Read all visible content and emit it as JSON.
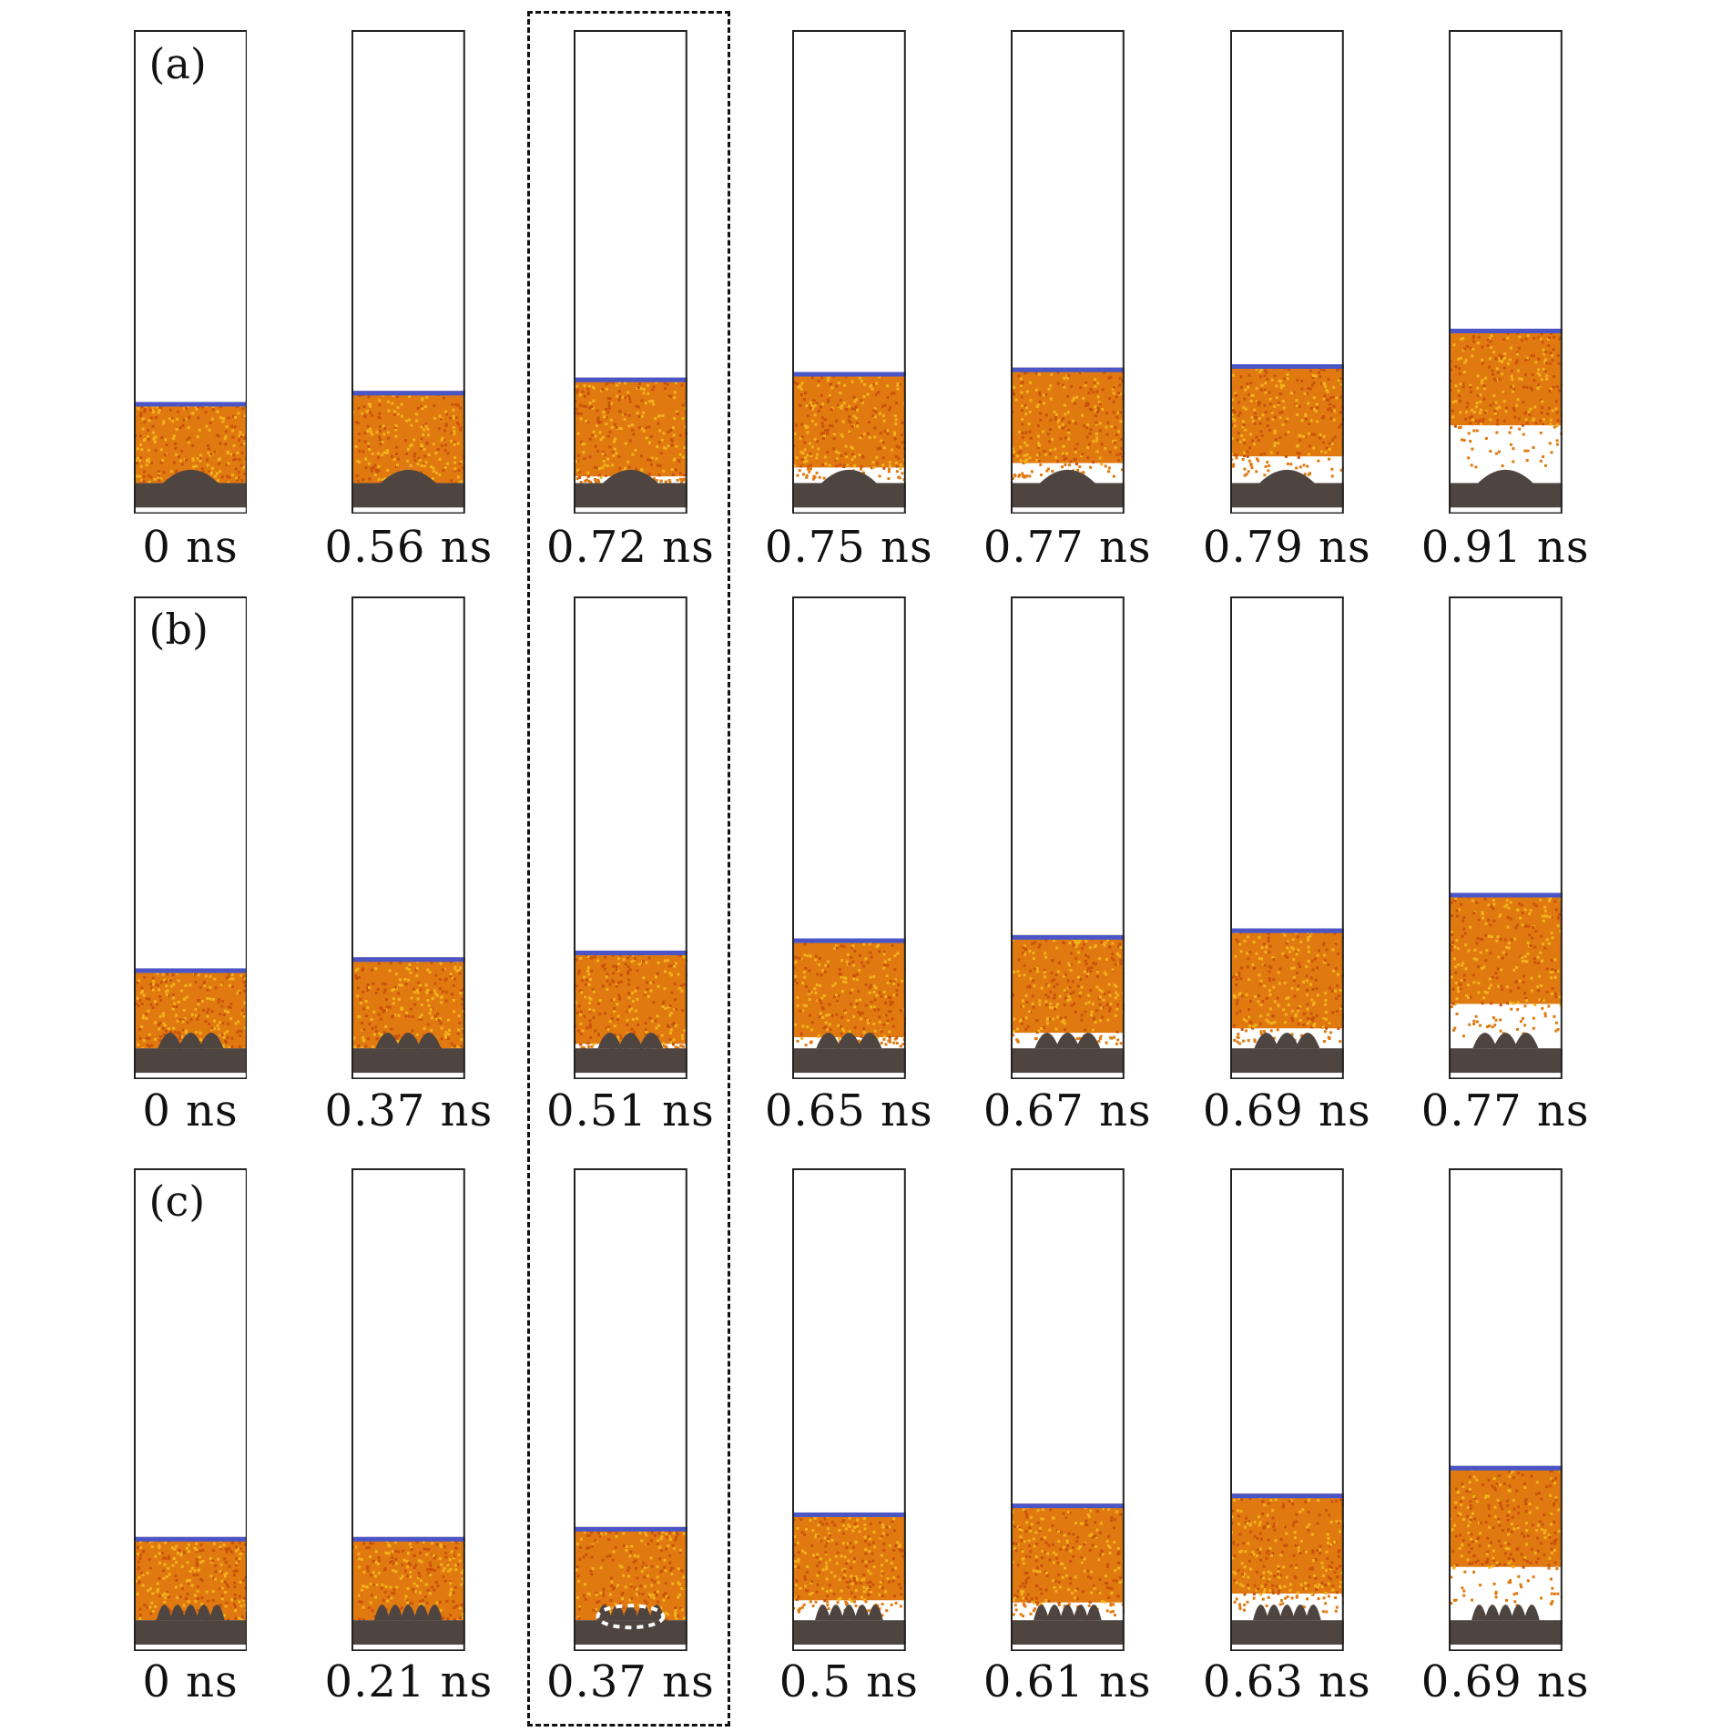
{
  "rows": [
    {
      "label": "(a)",
      "times": [
        "0 ns",
        "0.56 ns",
        "0.72 ns",
        "0.75 ns",
        "0.77 ns",
        "0.79 ns",
        "0.91 ns"
      ]
    },
    {
      "label": "(b)",
      "times": [
        "0 ns",
        "0.37 ns",
        "0.51 ns",
        "0.65 ns",
        "0.67 ns",
        "0.69 ns",
        "0.77 ns"
      ]
    },
    {
      "label": "(c)",
      "times": [
        "0 ns",
        "0.21 ns",
        "0.37 ns",
        "0.5 ns",
        "0.61 ns",
        "0.63 ns",
        "0.69 ns"
      ]
    }
  ],
  "colors": {
    "liquid": "#e07a10",
    "liquid_hi": "#f2b21c",
    "interface": "#4a55c8",
    "substrate": "#4e4440",
    "frame": "#222222"
  }
}
